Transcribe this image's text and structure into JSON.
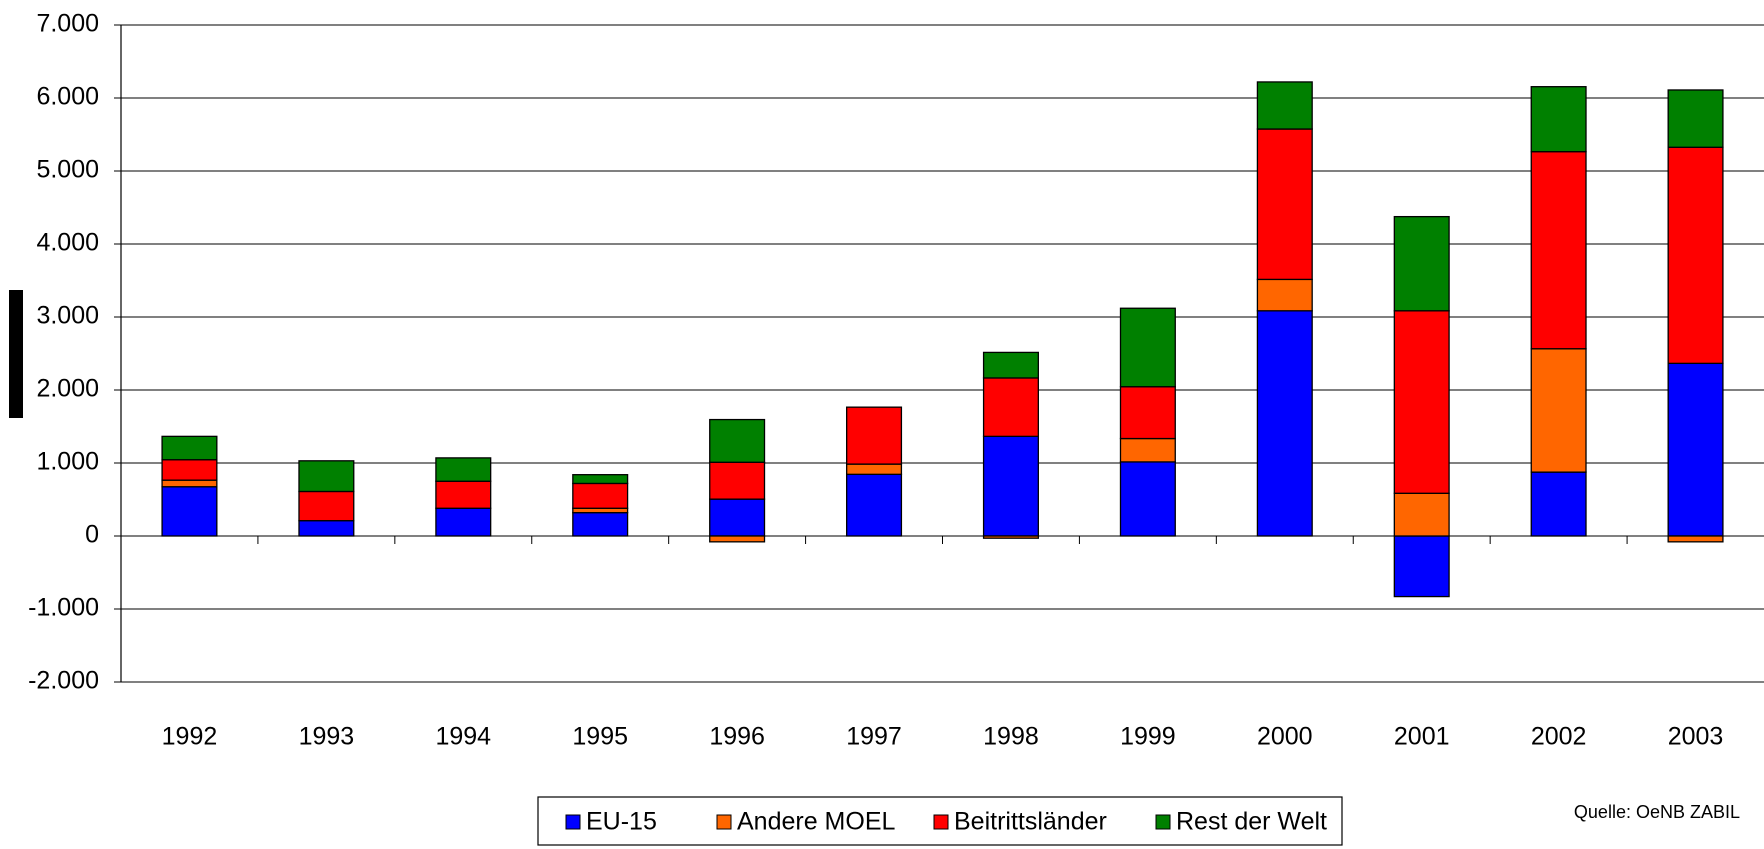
{
  "chart_data": {
    "type": "stacked_bar",
    "categories": [
      "1992",
      "1993",
      "1994",
      "1995",
      "1996",
      "1997",
      "1998",
      "1999",
      "2000",
      "2001",
      "2002",
      "2003"
    ],
    "series": [
      {
        "name": "EU-15",
        "color": "#0000ff",
        "values": [
          675,
          210,
          380,
          320,
          505,
          845,
          1365,
          1015,
          3085,
          -830,
          875,
          2365
        ]
      },
      {
        "name": "Andere MOEL",
        "color": "#ff6600",
        "values": [
          90,
          0,
          0,
          60,
          -80,
          140,
          -30,
          320,
          430,
          585,
          1690,
          -80
        ]
      },
      {
        "name": "Beitrittsländer",
        "color": "#ff0000",
        "values": [
          280,
          400,
          370,
          340,
          505,
          780,
          800,
          710,
          2060,
          2500,
          2700,
          2960
        ]
      },
      {
        "name": "Rest der Welt",
        "color": "#008000",
        "values": [
          320,
          420,
          320,
          120,
          585,
          0,
          350,
          1075,
          645,
          1290,
          890,
          785
        ]
      }
    ],
    "ylim": [
      -2000,
      7000
    ],
    "yticks": [
      {
        "value": -2000,
        "label": "-2.000"
      },
      {
        "value": -1000,
        "label": "-1.000"
      },
      0,
      {
        "value": 1000,
        "label": "1.000"
      },
      {
        "value": 2000,
        "label": "2.000"
      },
      {
        "value": 3000,
        "label": "3.000"
      },
      {
        "value": 4000,
        "label": "4.000"
      },
      {
        "value": 5000,
        "label": "5.000"
      },
      {
        "value": 6000,
        "label": "6.000"
      },
      {
        "value": 7000,
        "label": "7.000"
      }
    ],
    "negative_tick_color": "#ff0000",
    "grid": true,
    "legend": "bottom",
    "source": "Quelle: OeNB ZABIL"
  }
}
